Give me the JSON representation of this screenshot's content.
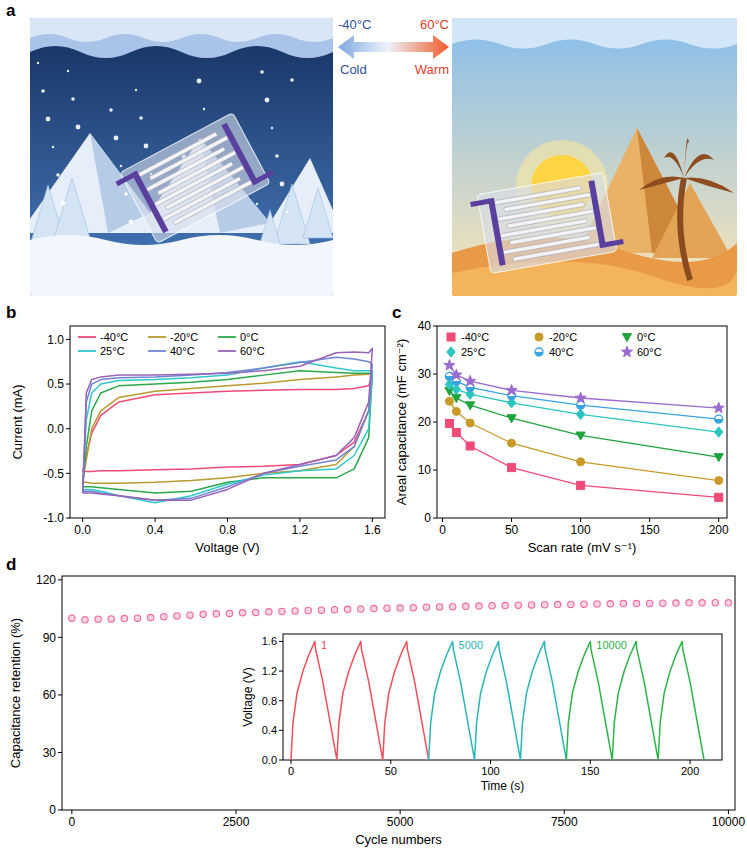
{
  "diagram": {
    "panel_label": "a",
    "cold": {
      "temperature": "-40°C",
      "label": "Cold"
    },
    "warm": {
      "temperature": "60°C",
      "label": "Warm"
    }
  },
  "chart_data": [
    {
      "panel_label": "b",
      "type": "line",
      "x_label": "Voltage (V)",
      "y_label": "Current (mA)",
      "x": [
        0,
        0.02,
        0.05,
        0.1,
        0.2,
        0.4,
        0.6,
        0.8,
        1.0,
        1.2,
        1.4,
        1.5,
        1.58,
        1.6,
        1.58,
        1.5,
        1.4,
        1.2,
        1.0,
        0.8,
        0.6,
        0.4,
        0.2,
        0.1,
        0.05,
        0.02,
        0
      ],
      "xlim": [
        -0.07,
        1.67
      ],
      "xticks": [
        {
          "value": 0,
          "label": "0.0"
        },
        0.4,
        0.8,
        1.2,
        1.6
      ],
      "ylim": [
        -1.0,
        1.15
      ],
      "yticks": [
        {
          "value": -1,
          "label": "-1.0"
        },
        -0.5,
        {
          "value": 0,
          "label": "0.0"
        },
        0.5,
        {
          "value": 1,
          "label": "1.0"
        }
      ],
      "legend": "upper left",
      "series": [
        {
          "name": "-40°C",
          "color": "#f04a78",
          "values": [
            -0.48,
            -0.3,
            -0.05,
            0.15,
            0.3,
            0.38,
            0.4,
            0.42,
            0.43,
            0.44,
            0.44,
            0.45,
            0.48,
            0.6,
            0.2,
            -0.15,
            -0.3,
            -0.4,
            -0.42,
            -0.43,
            -0.45,
            -0.46,
            -0.47,
            -0.47,
            -0.48,
            -0.48,
            -0.48
          ]
        },
        {
          "name": "-20°C",
          "color": "#b89a2e",
          "values": [
            -0.6,
            -0.35,
            0.0,
            0.2,
            0.35,
            0.42,
            0.45,
            0.48,
            0.51,
            0.55,
            0.58,
            0.6,
            0.61,
            0.63,
            0.2,
            -0.2,
            -0.4,
            -0.47,
            -0.5,
            -0.55,
            -0.58,
            -0.6,
            -0.61,
            -0.61,
            -0.61,
            -0.6,
            -0.6
          ]
        },
        {
          "name": "0°C",
          "color": "#2aa84a",
          "values": [
            -0.65,
            -0.2,
            0.2,
            0.4,
            0.48,
            0.5,
            0.52,
            0.55,
            0.6,
            0.65,
            0.63,
            0.62,
            0.62,
            0.62,
            -0.1,
            -0.45,
            -0.55,
            -0.55,
            -0.55,
            -0.6,
            -0.7,
            -0.72,
            -0.68,
            -0.66,
            -0.65,
            -0.65,
            -0.65
          ]
        },
        {
          "name": "25°C",
          "color": "#2ec8c8",
          "values": [
            -0.68,
            0.1,
            0.4,
            0.5,
            0.54,
            0.55,
            0.57,
            0.6,
            0.68,
            0.75,
            0.68,
            0.65,
            0.65,
            0.65,
            0.0,
            -0.3,
            -0.45,
            -0.47,
            -0.52,
            -0.62,
            -0.75,
            -0.83,
            -0.75,
            -0.7,
            -0.68,
            -0.68,
            -0.68
          ]
        },
        {
          "name": "40°C",
          "color": "#6f86d6",
          "values": [
            -0.7,
            0.3,
            0.5,
            0.55,
            0.57,
            0.58,
            0.6,
            0.63,
            0.68,
            0.74,
            0.8,
            0.78,
            0.75,
            0.72,
            0.2,
            -0.2,
            -0.35,
            -0.42,
            -0.5,
            -0.65,
            -0.78,
            -0.8,
            -0.75,
            -0.72,
            -0.7,
            -0.7,
            -0.7
          ]
        },
        {
          "name": "60°C",
          "color": "#9a62b8",
          "values": [
            -0.72,
            0.4,
            0.55,
            0.58,
            0.6,
            0.6,
            0.61,
            0.62,
            0.65,
            0.7,
            0.85,
            0.86,
            0.85,
            0.9,
            0.3,
            -0.1,
            -0.3,
            -0.4,
            -0.5,
            -0.68,
            -0.8,
            -0.8,
            -0.75,
            -0.73,
            -0.72,
            -0.72,
            -0.72
          ]
        }
      ]
    },
    {
      "panel_label": "c",
      "type": "line",
      "x_label": "Scan rate (mV s⁻¹)",
      "y_label": "Areal capacitance (mF cm⁻²)",
      "x": [
        5,
        10,
        20,
        50,
        100,
        200
      ],
      "xlim": [
        -4,
        206
      ],
      "xticks": [
        0,
        50,
        100,
        150,
        200
      ],
      "ylim": [
        0,
        40
      ],
      "yticks": [
        0,
        10,
        20,
        30,
        40
      ],
      "legend": "upper left",
      "series": [
        {
          "name": "-40°C",
          "color": "#f04a78",
          "marker": "square",
          "values": [
            19.7,
            17.8,
            15.0,
            10.5,
            6.8,
            4.3
          ]
        },
        {
          "name": "-20°C",
          "color": "#c99a28",
          "marker": "circle",
          "values": [
            24.3,
            22.2,
            19.8,
            15.6,
            11.7,
            7.8
          ]
        },
        {
          "name": "0°C",
          "color": "#1fa43c",
          "marker": "triangle-down",
          "values": [
            26.5,
            25.0,
            23.5,
            20.8,
            17.2,
            12.7
          ]
        },
        {
          "name": "25°C",
          "color": "#2cc6c0",
          "marker": "diamond",
          "values": [
            27.8,
            26.8,
            25.8,
            24.0,
            21.6,
            17.9
          ]
        },
        {
          "name": "40°C",
          "color": "#38a4e0",
          "marker": "half-circle",
          "values": [
            29.5,
            28.5,
            27.2,
            25.5,
            23.5,
            20.6
          ]
        },
        {
          "name": "60°C",
          "color": "#9b6bd0",
          "marker": "star",
          "values": [
            31.8,
            29.8,
            28.5,
            26.6,
            25.0,
            22.9
          ]
        }
      ]
    },
    {
      "panel_label": "d",
      "type": "scatter",
      "marker": "circle",
      "color": "#ee6a9e",
      "x_label": "Cycle numbers",
      "y_label": "Capacitance retention (%)",
      "x": [
        0,
        200,
        400,
        600,
        800,
        1000,
        1200,
        1400,
        1600,
        1800,
        2000,
        2200,
        2400,
        2600,
        2800,
        3000,
        3200,
        3400,
        3600,
        3800,
        4000,
        4200,
        4400,
        4600,
        4800,
        5000,
        5200,
        5400,
        5600,
        5800,
        6000,
        6200,
        6400,
        6600,
        6800,
        7000,
        7200,
        7400,
        7600,
        7800,
        8000,
        8200,
        8400,
        8600,
        8800,
        9000,
        9200,
        9400,
        9600,
        9800,
        10000
      ],
      "values": [
        100,
        99.2,
        99.5,
        99.6,
        99.8,
        100.0,
        100.3,
        100.8,
        101.2,
        101.6,
        102.0,
        102.3,
        102.5,
        102.8,
        103.0,
        103.3,
        103.5,
        103.8,
        104.0,
        104.2,
        104.4,
        104.6,
        104.8,
        105.0,
        105.2,
        105.3,
        105.5,
        105.7,
        105.9,
        106.0,
        106.2,
        106.3,
        106.5,
        106.6,
        106.8,
        106.9,
        107.0,
        107.1,
        107.2,
        107.3,
        107.4,
        107.5,
        107.6,
        107.6,
        107.7,
        107.8,
        107.9,
        108.0,
        108.0,
        108.1,
        108.0
      ],
      "xlim": [
        -150,
        10100
      ],
      "xticks": [
        0,
        2500,
        5000,
        7500,
        10000
      ],
      "ylim": [
        0,
        122
      ],
      "yticks": [
        0,
        30,
        60,
        90,
        120
      ]
    },
    {
      "type": "line",
      "x_label": "Time (s)",
      "y_label": "Voltage (V)",
      "xlim": [
        -4,
        216
      ],
      "xticks": [
        0,
        50,
        100,
        150,
        200
      ],
      "ylim": [
        0,
        1.7
      ],
      "yticks": [
        {
          "value": 0,
          "label": "0.0"
        },
        0.4,
        0.8,
        1.2,
        1.6
      ],
      "series": [
        {
          "name": "1",
          "color": "#ef4f5a",
          "x": [
            0,
            1,
            3,
            6,
            9,
            12,
            12.3,
            16,
            20,
            23,
            24,
            26,
            29,
            32,
            35,
            35.3,
            39,
            43,
            46,
            47,
            49,
            52,
            55,
            58,
            58.3,
            62,
            66,
            69
          ],
          "values": [
            0,
            0.5,
            0.9,
            1.2,
            1.42,
            1.6,
            1.5,
            1.05,
            0.45,
            0,
            0.5,
            0.9,
            1.2,
            1.42,
            1.6,
            1.5,
            1.05,
            0.45,
            0,
            0.5,
            0.9,
            1.2,
            1.42,
            1.6,
            1.5,
            1.05,
            0.45,
            0
          ]
        },
        {
          "name": "5000",
          "color": "#2ab5b5",
          "x": [
            69,
            70,
            72,
            75,
            78,
            81,
            81.3,
            85,
            89,
            92,
            93,
            95,
            98,
            101,
            104,
            104.3,
            108,
            112,
            115,
            116,
            118,
            121,
            124,
            127,
            127.3,
            131,
            135,
            138
          ],
          "values": [
            0,
            0.5,
            0.9,
            1.2,
            1.42,
            1.6,
            1.5,
            1.05,
            0.45,
            0,
            0.5,
            0.9,
            1.2,
            1.42,
            1.6,
            1.5,
            1.05,
            0.45,
            0,
            0.5,
            0.9,
            1.2,
            1.42,
            1.6,
            1.5,
            1.05,
            0.45,
            0
          ]
        },
        {
          "name": "10000",
          "color": "#2eb34a",
          "x": [
            138,
            139,
            141,
            144,
            147,
            150,
            150.3,
            154,
            158,
            161,
            162,
            164,
            167,
            170,
            173,
            173.3,
            177,
            181,
            184,
            185,
            187,
            190,
            193,
            196,
            196.3,
            200,
            204,
            207
          ],
          "values": [
            0,
            0.5,
            0.9,
            1.2,
            1.42,
            1.6,
            1.5,
            1.05,
            0.45,
            0,
            0.5,
            0.9,
            1.2,
            1.42,
            1.6,
            1.5,
            1.05,
            0.45,
            0,
            0.5,
            0.9,
            1.2,
            1.42,
            1.6,
            1.5,
            1.05,
            0.45,
            0
          ]
        }
      ]
    }
  ]
}
